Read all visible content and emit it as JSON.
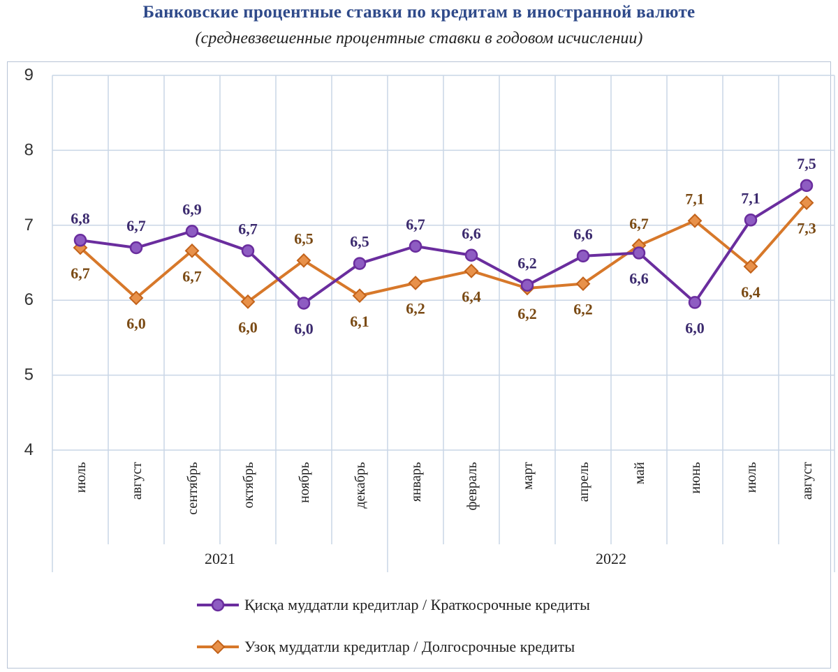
{
  "title": "Банковские процентные ставки по кредитам в иностранной валюте",
  "subtitle": "(средневзвешенные процентные ставки в годовом исчислении)",
  "colors": {
    "short": "#6a2d9e",
    "long": "#d7782a",
    "short_label": "#3b2a6e",
    "long_label": "#7a4a14",
    "grid": "#c9d6e6"
  },
  "chart_data": {
    "type": "line",
    "categories": [
      "июль",
      "август",
      "сентябрь",
      "октябрь",
      "ноябрь",
      "декабрь",
      "январь",
      "февраль",
      "март",
      "апрель",
      "май",
      "июнь",
      "июль",
      "август"
    ],
    "year_groups": [
      {
        "label": "2021",
        "count": 6
      },
      {
        "label": "2022",
        "count": 8
      }
    ],
    "ylim": [
      4,
      9
    ],
    "yticks": [
      4,
      5,
      6,
      7,
      8,
      9
    ],
    "grid": true,
    "legend_position": "bottom",
    "series": [
      {
        "name": "Қисқа муддатли кредитлар  / Краткосрочные кредиты",
        "marker": "circle",
        "values": [
          6.8,
          6.7,
          6.92,
          6.66,
          5.96,
          6.49,
          6.72,
          6.6,
          6.2,
          6.59,
          6.63,
          5.97,
          7.07,
          7.53
        ],
        "labels": [
          "6,8",
          "6,7",
          "6,9",
          "6,7",
          "6,0",
          "6,5",
          "6,7",
          "6,6",
          "6,2",
          "6,6",
          "6,6",
          "6,0",
          "7,1",
          "7,5"
        ],
        "label_pos": [
          "above",
          "above",
          "above",
          "above",
          "below",
          "above",
          "above",
          "above",
          "above",
          "above",
          "below",
          "below",
          "above",
          "above"
        ]
      },
      {
        "name": "Узоқ муддатли кредитлар  / Долгосрочные кредиты",
        "marker": "diamond",
        "values": [
          6.7,
          6.03,
          6.66,
          5.98,
          6.53,
          6.06,
          6.23,
          6.39,
          6.16,
          6.22,
          6.73,
          7.06,
          6.45,
          7.3
        ],
        "labels": [
          "6,7",
          "6,0",
          "6,7",
          "6,0",
          "6,5",
          "6,1",
          "6,2",
          "6,4",
          "6,2",
          "6,2",
          "6,7",
          "7,1",
          "6,4",
          "7,3"
        ],
        "label_pos": [
          "below",
          "below",
          "below",
          "below",
          "above",
          "below",
          "below",
          "below",
          "below",
          "below",
          "above",
          "above",
          "below",
          "below"
        ]
      }
    ]
  }
}
